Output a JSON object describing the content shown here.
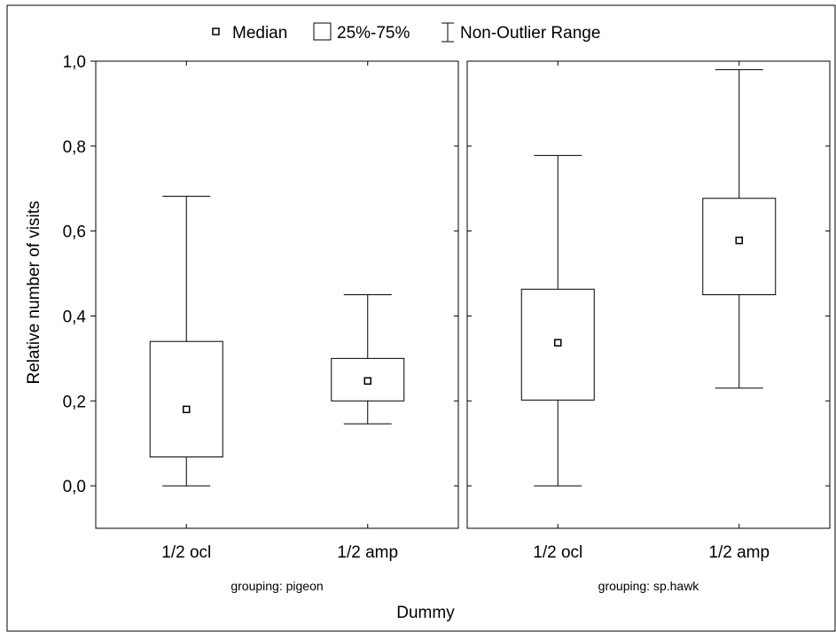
{
  "chart_data": {
    "type": "box",
    "legend": {
      "median": "Median",
      "box": "25%-75%",
      "whisker": "Non-Outlier Range"
    },
    "ylabel": "Relative number of visits",
    "xlabel": "Dummy",
    "ylim": [
      -0.1,
      1.0
    ],
    "yticks": [
      "0,0",
      "0,2",
      "0,4",
      "0,6",
      "0,8",
      "1,0"
    ],
    "ytick_values": [
      0.0,
      0.2,
      0.4,
      0.6,
      0.8,
      1.0
    ],
    "panels": [
      {
        "group_label": "grouping: pigeon",
        "categories": [
          "1/2 ocl",
          "1/2 amp"
        ],
        "boxes": [
          {
            "min": 0.0,
            "q1": 0.068,
            "median": 0.18,
            "q3": 0.34,
            "max": 0.682
          },
          {
            "min": 0.146,
            "q1": 0.2,
            "median": 0.247,
            "q3": 0.3,
            "max": 0.45
          }
        ]
      },
      {
        "group_label": "grouping: sp.hawk",
        "categories": [
          "1/2 ocl",
          "1/2 amp"
        ],
        "boxes": [
          {
            "min": 0.0,
            "q1": 0.202,
            "median": 0.337,
            "q3": 0.463,
            "max": 0.778
          },
          {
            "min": 0.23,
            "q1": 0.45,
            "median": 0.578,
            "q3": 0.677,
            "max": 0.98
          }
        ]
      }
    ]
  }
}
